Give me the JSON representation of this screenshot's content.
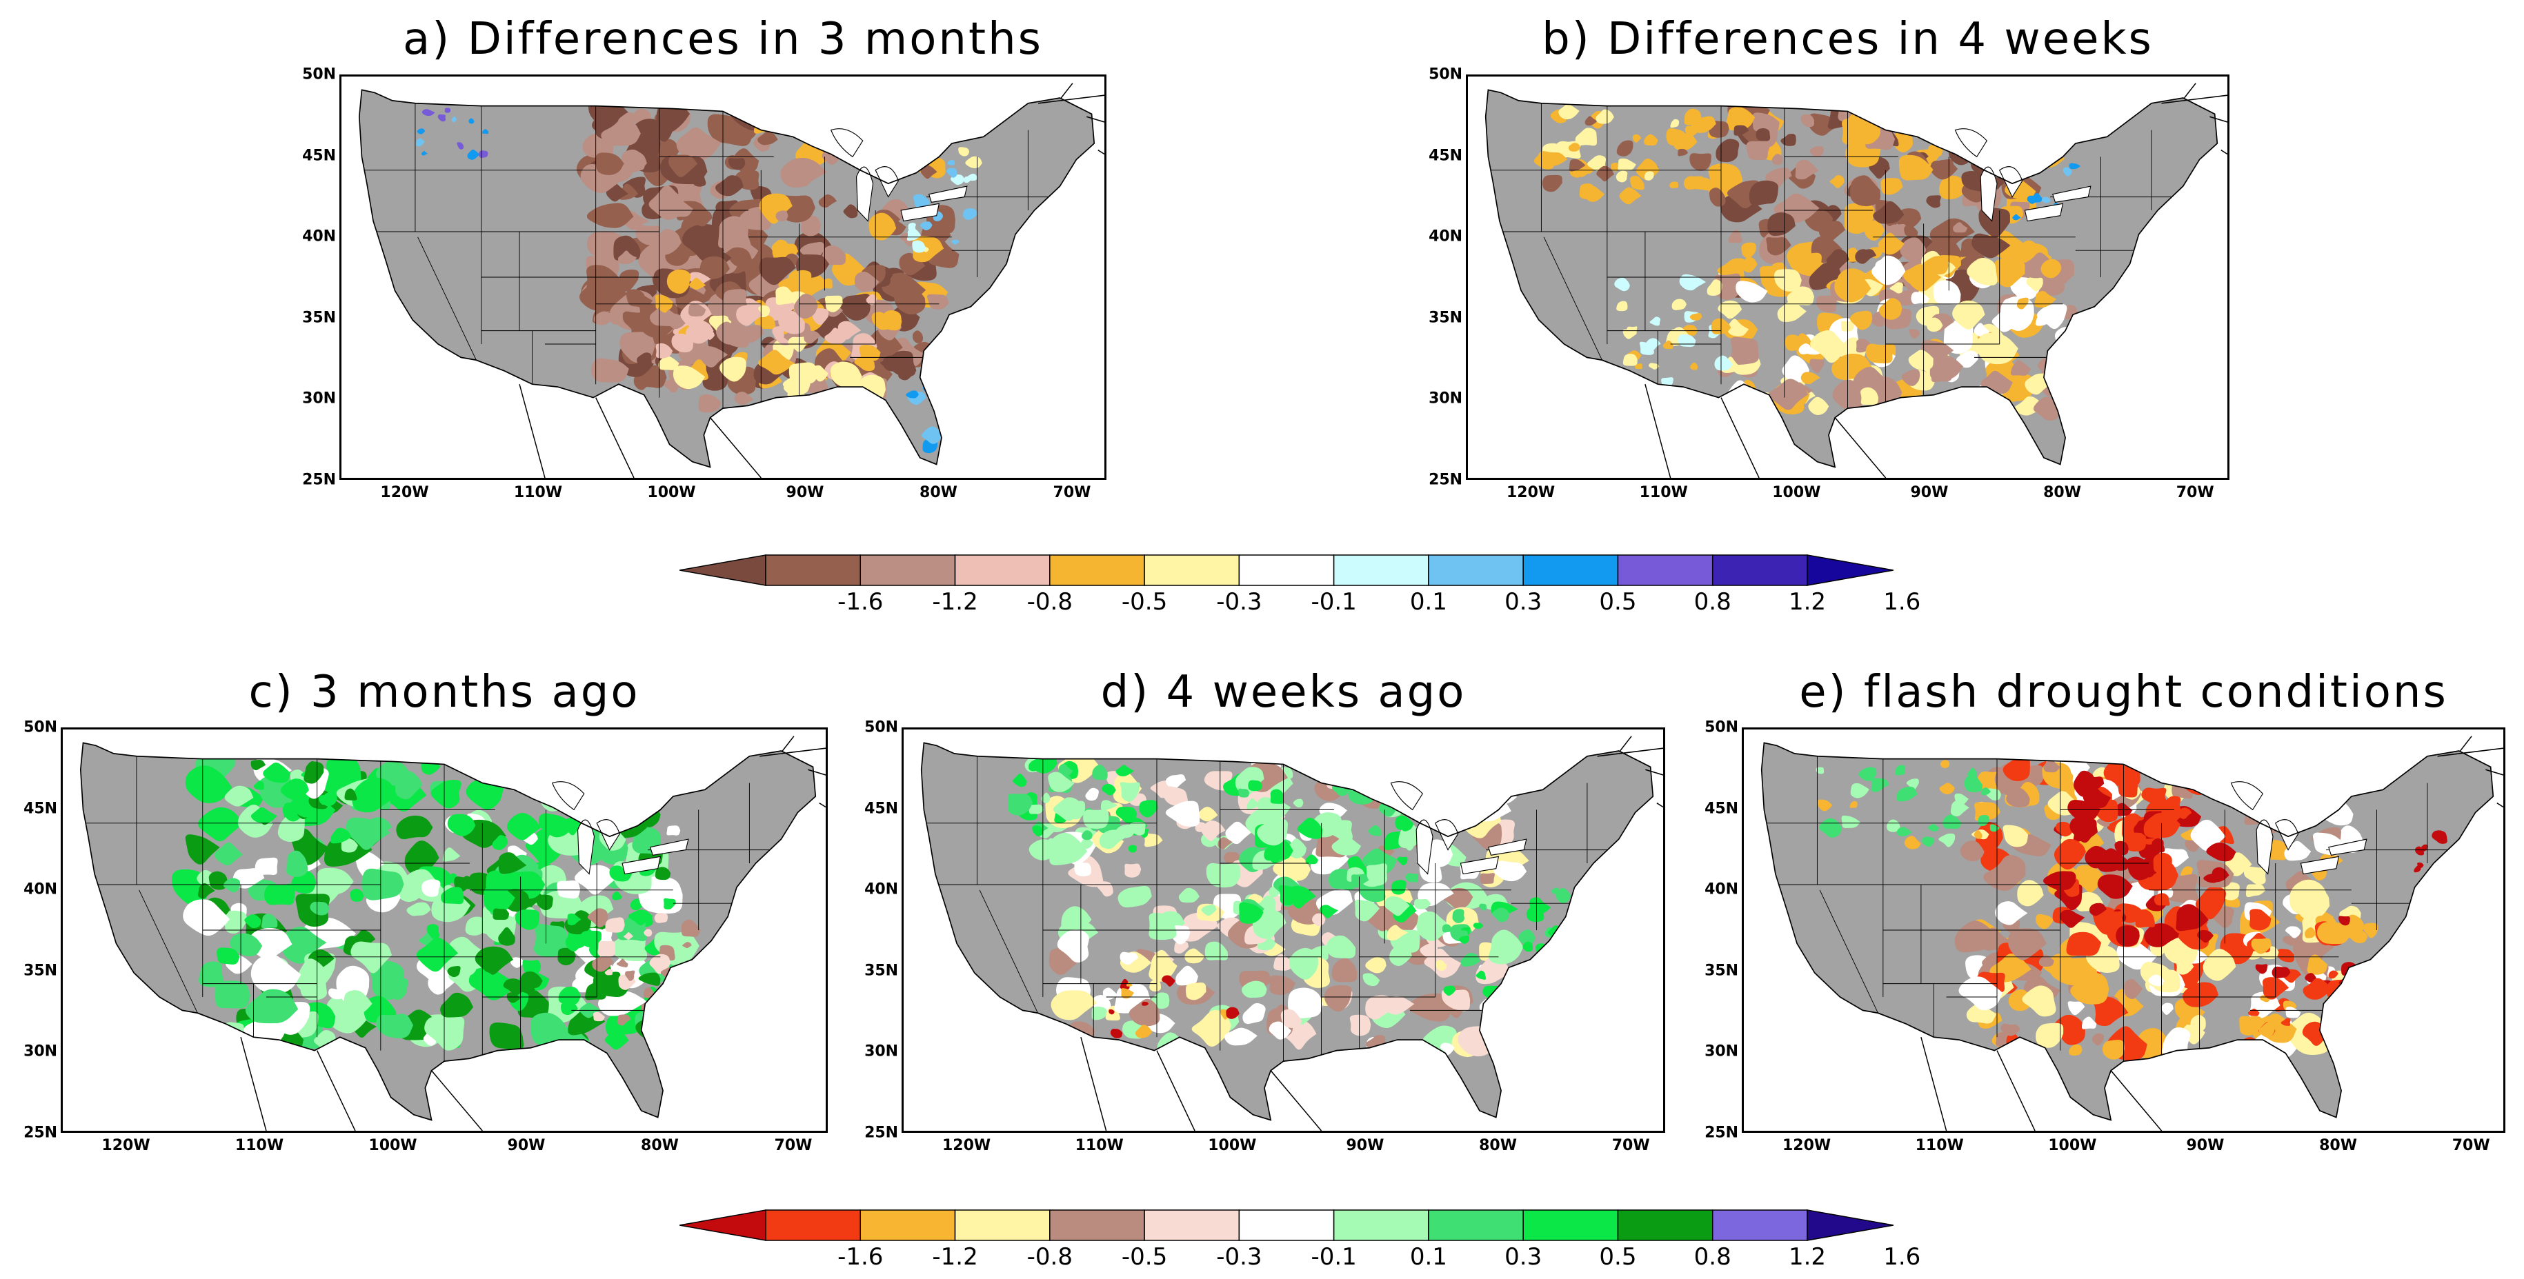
{
  "panels": [
    {
      "id": "a",
      "title": "a) Differences in 3 months",
      "scheme": "diffA"
    },
    {
      "id": "b",
      "title": "b) Differences in 4 weeks",
      "scheme": "diffB"
    },
    {
      "id": "c",
      "title": "c) 3 months ago",
      "scheme": "greenC"
    },
    {
      "id": "d",
      "title": "d) 4 weeks ago",
      "scheme": "greenD"
    },
    {
      "id": "e",
      "title": "e) flash drought conditions",
      "scheme": "redE"
    }
  ],
  "axes": {
    "lat_labels": [
      "50N",
      "45N",
      "40N",
      "35N",
      "30N",
      "25N"
    ],
    "lon_labels": [
      "120W",
      "110W",
      "100W",
      "90W",
      "80W",
      "70W"
    ]
  },
  "colorbar_top": {
    "labels": [
      "-1.6",
      "-1.2",
      "-0.8",
      "-0.5",
      "-0.3",
      "-0.1",
      "0.1",
      "0.3",
      "0.5",
      "0.8",
      "1.2",
      "1.6"
    ],
    "colors": [
      "#7b4a3e",
      "#96604f",
      "#bb8f84",
      "#eebfb4",
      "#f5b531",
      "#fff5a5",
      "#ffffff",
      "#ccfcfd",
      "#6fc3f2",
      "#129af0",
      "#775ad8",
      "#3c23b4",
      "#17069c"
    ]
  },
  "colorbar_bottom": {
    "labels": [
      "-1.6",
      "-1.2",
      "-0.8",
      "-0.5",
      "-0.3",
      "-0.1",
      "0.1",
      "0.3",
      "0.5",
      "0.8",
      "1.2",
      "1.6"
    ],
    "colors": [
      "#c30a0c",
      "#f33b13",
      "#f7b532",
      "#fff5a5",
      "#b98c7f",
      "#f8dcd4",
      "#ffffff",
      "#a6fbb4",
      "#40df73",
      "#0be746",
      "#0a9d14",
      "#7d67de",
      "#22098c"
    ]
  },
  "colors": {
    "land_gray": "#a3a3a3",
    "border": "#000000",
    "water": "#ffffff"
  }
}
